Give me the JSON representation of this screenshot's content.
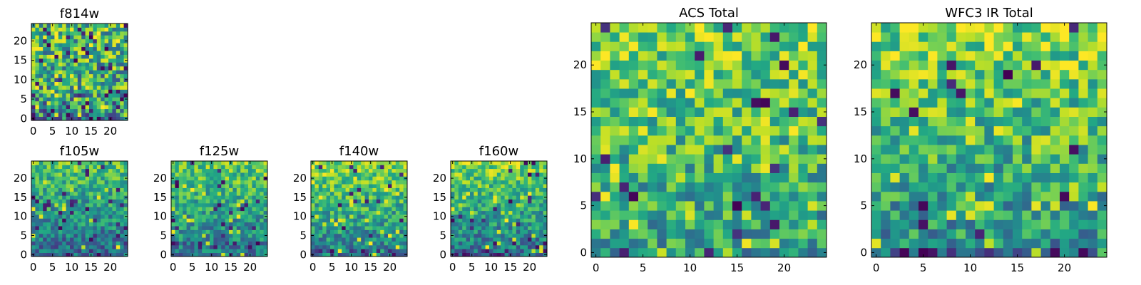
{
  "chart_data": [
    {
      "type": "heatmap",
      "title": "f814w",
      "grid_size": [
        25,
        25
      ],
      "xlim": [
        0,
        24
      ],
      "ylim": [
        0,
        24
      ],
      "xticks": [
        "0",
        "5",
        "10",
        "15",
        "20"
      ],
      "yticks": [
        "0",
        "5",
        "10",
        "15",
        "20"
      ],
      "colormap": "viridis",
      "value_range": [
        0,
        1
      ],
      "pattern": {
        "seed": 11,
        "mean_bottom": 0.48,
        "mean_top": 0.7,
        "noise": 0.35,
        "dark_fraction": 0.06,
        "bright_fraction": 0.1,
        "dark_rows": [
          0,
          1
        ]
      }
    },
    {
      "type": "heatmap",
      "title": "f105w",
      "grid_size": [
        25,
        25
      ],
      "xlim": [
        0,
        24
      ],
      "ylim": [
        0,
        24
      ],
      "xticks": [
        "0",
        "5",
        "10",
        "15",
        "20"
      ],
      "yticks": [
        "0",
        "5",
        "10",
        "15",
        "20"
      ],
      "colormap": "viridis",
      "value_range": [
        0,
        1
      ],
      "pattern": {
        "seed": 23,
        "mean_bottom": 0.35,
        "mean_top": 0.72,
        "noise": 0.22,
        "dark_fraction": 0.03,
        "bright_fraction": 0.03,
        "dark_rows": [
          0
        ]
      }
    },
    {
      "type": "heatmap",
      "title": "f125w",
      "grid_size": [
        25,
        25
      ],
      "xlim": [
        0,
        24
      ],
      "ylim": [
        0,
        24
      ],
      "xticks": [
        "0",
        "5",
        "10",
        "15",
        "20"
      ],
      "yticks": [
        "0",
        "5",
        "10",
        "15",
        "20"
      ],
      "colormap": "viridis",
      "value_range": [
        0,
        1
      ],
      "pattern": {
        "seed": 37,
        "mean_bottom": 0.4,
        "mean_top": 0.75,
        "noise": 0.22,
        "dark_fraction": 0.03,
        "bright_fraction": 0.04,
        "dark_rows": [
          2,
          3
        ]
      }
    },
    {
      "type": "heatmap",
      "title": "f140w",
      "grid_size": [
        25,
        25
      ],
      "xlim": [
        0,
        24
      ],
      "ylim": [
        0,
        24
      ],
      "xticks": [
        "0",
        "5",
        "10",
        "15",
        "20"
      ],
      "yticks": [
        "0",
        "5",
        "10",
        "15",
        "20"
      ],
      "colormap": "viridis",
      "value_range": [
        0,
        1
      ],
      "pattern": {
        "seed": 41,
        "mean_bottom": 0.42,
        "mean_top": 0.82,
        "noise": 0.22,
        "dark_fraction": 0.03,
        "bright_fraction": 0.06,
        "dark_rows": [
          0,
          1
        ]
      }
    },
    {
      "type": "heatmap",
      "title": "f160w",
      "grid_size": [
        25,
        25
      ],
      "xlim": [
        0,
        24
      ],
      "ylim": [
        0,
        24
      ],
      "xticks": [
        "0",
        "5",
        "10",
        "15",
        "20"
      ],
      "yticks": [
        "0",
        "5",
        "10",
        "15",
        "20"
      ],
      "colormap": "viridis",
      "value_range": [
        0,
        1
      ],
      "pattern": {
        "seed": 53,
        "mean_bottom": 0.38,
        "mean_top": 0.8,
        "noise": 0.22,
        "dark_fraction": 0.04,
        "bright_fraction": 0.06,
        "dark_rows": [
          0,
          1
        ]
      }
    },
    {
      "type": "heatmap",
      "title": "ACS Total",
      "grid_size": [
        25,
        25
      ],
      "xlim": [
        0,
        24
      ],
      "ylim": [
        0,
        24
      ],
      "xticks": [
        "0",
        "5",
        "10",
        "15",
        "20"
      ],
      "yticks": [
        "0",
        "5",
        "10",
        "15",
        "20"
      ],
      "colormap": "viridis",
      "value_range": [
        0,
        1
      ],
      "pattern": {
        "seed": 67,
        "mean_bottom": 0.55,
        "mean_top": 0.8,
        "noise": 0.25,
        "dark_fraction": 0.03,
        "bright_fraction": 0.1,
        "dark_rows": []
      }
    },
    {
      "type": "heatmap",
      "title": "WFC3 IR Total",
      "grid_size": [
        25,
        25
      ],
      "xlim": [
        0,
        24
      ],
      "ylim": [
        0,
        24
      ],
      "xticks": [
        "0",
        "5",
        "10",
        "15",
        "20"
      ],
      "yticks": [
        "0",
        "5",
        "10",
        "15",
        "20"
      ],
      "colormap": "viridis",
      "value_range": [
        0,
        1
      ],
      "pattern": {
        "seed": 79,
        "mean_bottom": 0.5,
        "mean_top": 0.8,
        "noise": 0.25,
        "dark_fraction": 0.03,
        "bright_fraction": 0.08,
        "dark_rows": [
          0
        ]
      }
    }
  ]
}
